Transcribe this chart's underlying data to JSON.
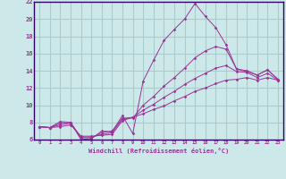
{
  "background_color": "#cce8e8",
  "grid_color": "#aacccc",
  "line_color": "#993399",
  "spine_color": "#330066",
  "xlabel": "Windchill (Refroidissement éolien,°C)",
  "x_values": [
    0,
    1,
    2,
    3,
    4,
    5,
    6,
    7,
    8,
    9,
    10,
    11,
    12,
    13,
    14,
    15,
    16,
    17,
    18,
    19,
    20,
    21,
    22,
    23
  ],
  "line1": [
    7.5,
    7.4,
    8.1,
    8.0,
    6.0,
    6.1,
    7.0,
    6.9,
    8.8,
    6.7,
    12.8,
    15.2,
    17.5,
    18.8,
    20.0,
    21.8,
    20.3,
    19.0,
    17.0,
    14.2,
    14.0,
    13.5,
    14.1,
    13.0
  ],
  "line2": [
    7.5,
    7.4,
    7.9,
    8.0,
    6.2,
    6.2,
    6.8,
    7.0,
    8.5,
    8.5,
    10.0,
    11.0,
    12.2,
    13.2,
    14.3,
    15.5,
    16.3,
    16.8,
    16.5,
    14.2,
    13.9,
    13.5,
    14.1,
    13.0
  ],
  "line3": [
    7.5,
    7.4,
    7.7,
    7.9,
    6.3,
    6.3,
    6.6,
    6.8,
    8.4,
    8.6,
    9.4,
    10.1,
    10.9,
    11.6,
    12.4,
    13.1,
    13.7,
    14.3,
    14.6,
    13.9,
    13.8,
    13.2,
    13.7,
    12.9
  ],
  "line4": [
    7.5,
    7.4,
    7.5,
    7.7,
    6.4,
    6.4,
    6.5,
    6.6,
    8.2,
    8.6,
    9.0,
    9.5,
    9.9,
    10.5,
    11.0,
    11.6,
    12.0,
    12.5,
    12.9,
    13.0,
    13.2,
    12.9,
    13.2,
    12.9
  ],
  "ylim": [
    6,
    22
  ],
  "yticks": [
    6,
    8,
    10,
    12,
    14,
    16,
    18,
    20,
    22
  ],
  "xlim": [
    -0.5,
    23.5
  ],
  "figsize": [
    3.2,
    2.0
  ],
  "dpi": 100
}
